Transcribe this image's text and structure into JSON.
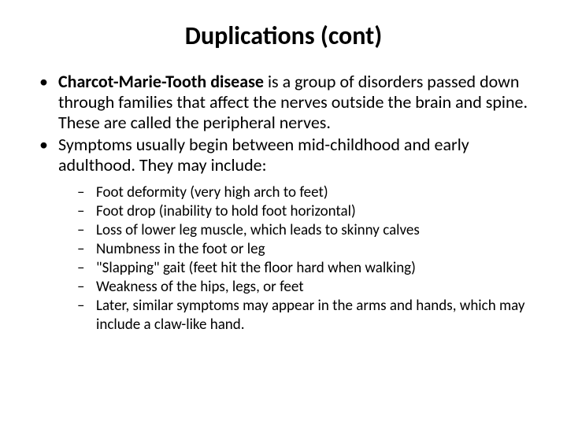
{
  "title": {
    "text": "Duplications (cont)",
    "fontsize": 32,
    "color": "#000000",
    "weight": 700
  },
  "body": {
    "level1_fontsize": 22,
    "level1_lineheight": 26,
    "level2_fontsize": 19,
    "level2_lineheight": 24,
    "text_color": "#000000",
    "bullets": [
      {
        "bold_lead": "Charcot-Marie-Tooth disease",
        "rest": " is a group of disorders passed down through families that affect the nerves outside the brain and spine. These are called the peripheral nerves."
      },
      {
        "bold_lead": "",
        "rest": "Symptoms usually begin between mid-childhood and early adulthood. They may include:"
      }
    ],
    "subbullets": [
      "Foot deformity (very high arch to feet)",
      "Foot drop (inability to hold foot horizontal)",
      "Loss of lower leg muscle, which leads to skinny calves",
      "Numbness in the foot or leg",
      "\"Slapping\" gait (feet hit the floor hard when walking)",
      "Weakness of the hips, legs, or feet",
      "Later, similar symptoms may appear in the arms and hands, which may include a claw-like hand."
    ]
  },
  "background_color": "#ffffff"
}
